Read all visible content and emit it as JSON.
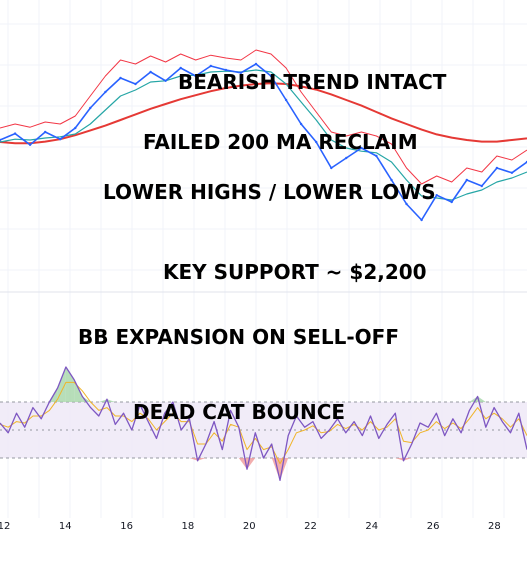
{
  "chart_data": [
    {
      "type": "line",
      "panel": "price",
      "series": [
        {
          "role": "price",
          "color": "#2962ff",
          "values": [
            2400,
            2416,
            2388,
            2420,
            2402,
            2430,
            2480,
            2520,
            2555,
            2540,
            2570,
            2548,
            2580,
            2560,
            2585,
            2575,
            2568,
            2590,
            2560,
            2500,
            2440,
            2395,
            2330,
            2355,
            2380,
            2360,
            2300,
            2240,
            2200,
            2262,
            2245,
            2300,
            2285,
            2330,
            2318,
            2345
          ]
        },
        {
          "role": "fast-ma",
          "color": "#26a6a6",
          "values": [
            2395,
            2402,
            2400,
            2405,
            2408,
            2415,
            2440,
            2475,
            2510,
            2525,
            2545,
            2548,
            2560,
            2562,
            2570,
            2572,
            2570,
            2575,
            2570,
            2540,
            2495,
            2450,
            2400,
            2380,
            2372,
            2368,
            2345,
            2300,
            2260,
            2255,
            2250,
            2265,
            2275,
            2295,
            2305,
            2320
          ]
        },
        {
          "role": "bb-upper",
          "color": "#f23645",
          "values": [
            2430,
            2440,
            2432,
            2445,
            2440,
            2460,
            2510,
            2560,
            2600,
            2590,
            2610,
            2595,
            2615,
            2600,
            2612,
            2605,
            2600,
            2625,
            2615,
            2580,
            2520,
            2470,
            2420,
            2410,
            2420,
            2410,
            2390,
            2330,
            2290,
            2310,
            2295,
            2330,
            2320,
            2360,
            2350,
            2375
          ]
        },
        {
          "role": "ma-200",
          "color": "#e53935",
          "values": [
            2395,
            2392,
            2392,
            2396,
            2402,
            2412,
            2424,
            2436,
            2450,
            2464,
            2478,
            2490,
            2502,
            2512,
            2522,
            2530,
            2536,
            2540,
            2542,
            2540,
            2534,
            2526,
            2514,
            2500,
            2486,
            2470,
            2454,
            2440,
            2426,
            2414,
            2406,
            2400,
            2396,
            2396,
            2400,
            2404
          ]
        }
      ]
    },
    {
      "type": "line",
      "panel": "oscillator",
      "x_ticks": [
        "12",
        "14",
        "16",
        "18",
        "20",
        "22",
        "24",
        "26",
        "28"
      ],
      "band": [
        30,
        70
      ],
      "midline": 50,
      "ylim": [
        0,
        100
      ],
      "series": [
        {
          "role": "oscillator",
          "color": "#7e57c2",
          "values": [
            55,
            48,
            62,
            52,
            66,
            58,
            70,
            80,
            95,
            86,
            74,
            66,
            60,
            72,
            54,
            62,
            50,
            68,
            56,
            44,
            62,
            70,
            50,
            58,
            28,
            40,
            56,
            36,
            64,
            52,
            22,
            48,
            30,
            40,
            14,
            46,
            60,
            52,
            56,
            44,
            50,
            58,
            48,
            56,
            46,
            60,
            44,
            54,
            62,
            28,
            40,
            55,
            52,
            62,
            46,
            58,
            48,
            64,
            74,
            52,
            66,
            56,
            48,
            62,
            36
          ]
        },
        {
          "role": "signal",
          "color": "#f0b429",
          "values": [
            54,
            52,
            56,
            55,
            60,
            60,
            64,
            72,
            84,
            84,
            78,
            70,
            64,
            66,
            60,
            60,
            56,
            62,
            58,
            50,
            56,
            62,
            56,
            56,
            40,
            40,
            48,
            42,
            54,
            52,
            36,
            44,
            36,
            38,
            26,
            36,
            48,
            50,
            53,
            48,
            49,
            54,
            51,
            54,
            50,
            56,
            50,
            52,
            58,
            42,
            41,
            48,
            50,
            56,
            51,
            55,
            51,
            58,
            66,
            58,
            62,
            58,
            52,
            58,
            46
          ]
        }
      ]
    }
  ],
  "annotations": {
    "bearish_trend": "BEARISH TREND INTACT",
    "failed_reclaim": "FAILED 200 MA RECLAIM",
    "lower_highs": "LOWER HIGHS / LOWER LOWS",
    "key_support": "KEY SUPPORT ~ $2,200",
    "bb_expansion": "BB EXPANSION ON SELL-OFF",
    "dead_cat": "DEAD CAT BOUNCE"
  },
  "colors": {
    "background": "#ffffff",
    "grid": "#f0f3fa",
    "band_fill": "#ede7f6",
    "band_line": "#9598a1",
    "overbought_fill": "#a5d6a7",
    "oversold_fill": "#ef9a9a"
  }
}
